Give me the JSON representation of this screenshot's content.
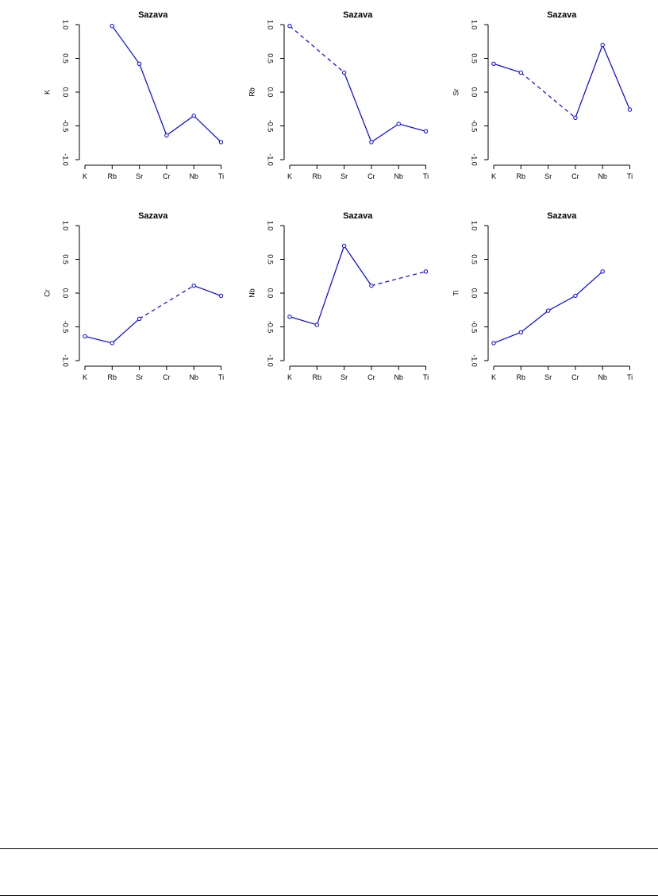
{
  "chart_data": [
    {
      "type": "line",
      "title": "Sazava",
      "ylabel": "K",
      "xlabel": "",
      "categories": [
        "K",
        "Rb",
        "Sr",
        "Cr",
        "Nb",
        "Ti"
      ],
      "values": [
        null,
        0.98,
        0.42,
        -0.64,
        -0.35,
        -0.74
      ],
      "dashed_segments": [],
      "ylim": [
        -1.0,
        1.0
      ],
      "yticks": [
        "-1.0",
        "-0.5",
        "0.0",
        "0.5",
        "1.0"
      ],
      "grid": false
    },
    {
      "type": "line",
      "title": "Sazava",
      "ylabel": "Rb",
      "xlabel": "",
      "categories": [
        "K",
        "Rb",
        "Sr",
        "Cr",
        "Nb",
        "Ti"
      ],
      "values": [
        0.98,
        null,
        0.29,
        -0.74,
        -0.47,
        -0.58
      ],
      "dashed_segments": [
        [
          0,
          2
        ]
      ],
      "ylim": [
        -1.0,
        1.0
      ],
      "yticks": [
        "-1.0",
        "-0.5",
        "0.0",
        "0.5",
        "1.0"
      ],
      "grid": false
    },
    {
      "type": "line",
      "title": "Sazava",
      "ylabel": "Sr",
      "xlabel": "",
      "categories": [
        "K",
        "Rb",
        "Sr",
        "Cr",
        "Nb",
        "Ti"
      ],
      "values": [
        0.42,
        0.29,
        null,
        -0.38,
        0.7,
        -0.26
      ],
      "dashed_segments": [
        [
          1,
          3
        ]
      ],
      "ylim": [
        -1.0,
        1.0
      ],
      "yticks": [
        "-1.0",
        "-0.5",
        "0.0",
        "0.5",
        "1.0"
      ],
      "grid": false
    },
    {
      "type": "line",
      "title": "Sazava",
      "ylabel": "Cr",
      "xlabel": "",
      "categories": [
        "K",
        "Rb",
        "Sr",
        "Cr",
        "Nb",
        "Ti"
      ],
      "values": [
        -0.64,
        -0.74,
        -0.38,
        null,
        0.11,
        -0.04
      ],
      "dashed_segments": [
        [
          2,
          4
        ]
      ],
      "ylim": [
        -1.0,
        1.0
      ],
      "yticks": [
        "-1.0",
        "-0.5",
        "0.0",
        "0.5",
        "1.0"
      ],
      "grid": false
    },
    {
      "type": "line",
      "title": "Sazava",
      "ylabel": "Nb",
      "xlabel": "",
      "categories": [
        "K",
        "Rb",
        "Sr",
        "Cr",
        "Nb",
        "Ti"
      ],
      "values": [
        -0.35,
        -0.47,
        0.7,
        0.11,
        null,
        0.32
      ],
      "dashed_segments": [
        [
          3,
          5
        ]
      ],
      "ylim": [
        -1.0,
        1.0
      ],
      "yticks": [
        "-1.0",
        "-0.5",
        "0.0",
        "0.5",
        "1.0"
      ],
      "grid": false
    },
    {
      "type": "line",
      "title": "Sazava",
      "ylabel": "Ti",
      "xlabel": "",
      "categories": [
        "K",
        "Rb",
        "Sr",
        "Cr",
        "Nb",
        "Ti"
      ],
      "values": [
        -0.74,
        -0.58,
        -0.26,
        -0.04,
        0.32,
        null
      ],
      "dashed_segments": [],
      "ylim": [
        -1.0,
        1.0
      ],
      "yticks": [
        "-1.0",
        "-0.5",
        "0.0",
        "0.5",
        "1.0"
      ],
      "grid": false
    }
  ],
  "colors": {
    "line": "#0000ff",
    "point": "#0000ff",
    "axis": "#000000"
  }
}
